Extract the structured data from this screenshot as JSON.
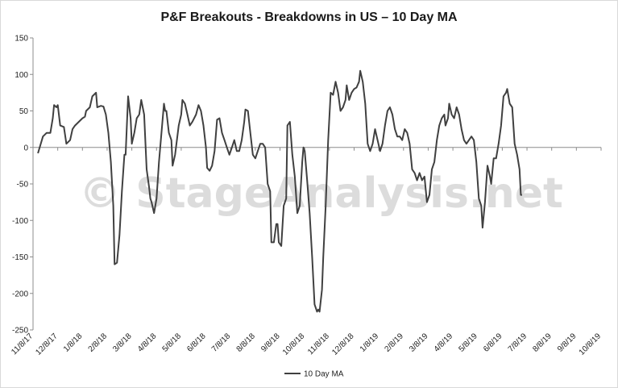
{
  "chart_data": {
    "type": "line",
    "title": "P&F Breakouts - Breakdowns in US – 10 Day MA",
    "xlabel": "",
    "ylabel": "",
    "ylim": [
      -250,
      150
    ],
    "yticks": [
      150,
      100,
      50,
      0,
      -50,
      -100,
      -150,
      -200,
      -250
    ],
    "x_ticks": [
      "11/8/17",
      "12/8/17",
      "1/8/18",
      "2/8/18",
      "3/8/18",
      "4/8/18",
      "5/8/18",
      "6/8/18",
      "7/8/18",
      "8/8/18",
      "9/8/18",
      "10/8/18",
      "11/8/18",
      "12/8/18",
      "1/8/19",
      "2/8/19",
      "3/8/19",
      "4/8/19",
      "5/8/19",
      "6/8/19",
      "7/8/19",
      "8/8/19",
      "9/8/19",
      "10/8/19"
    ],
    "grid": false,
    "legend_position": "bottom",
    "watermark": "© StageAnalysis.net",
    "series": [
      {
        "name": "10 Day MA",
        "color": "#404040",
        "points": [
          [
            0.2,
            -8
          ],
          [
            0.4,
            15
          ],
          [
            0.55,
            20
          ],
          [
            0.7,
            20
          ],
          [
            0.8,
            40
          ],
          [
            0.85,
            58
          ],
          [
            0.95,
            55
          ],
          [
            1.0,
            58
          ],
          [
            1.1,
            30
          ],
          [
            1.25,
            28
          ],
          [
            1.35,
            5
          ],
          [
            1.5,
            10
          ],
          [
            1.6,
            25
          ],
          [
            1.7,
            30
          ],
          [
            1.85,
            35
          ],
          [
            2.0,
            40
          ],
          [
            2.1,
            42
          ],
          [
            2.15,
            50
          ],
          [
            2.3,
            55
          ],
          [
            2.4,
            70
          ],
          [
            2.55,
            75
          ],
          [
            2.6,
            55
          ],
          [
            2.75,
            57
          ],
          [
            2.85,
            56
          ],
          [
            2.95,
            45
          ],
          [
            3.05,
            20
          ],
          [
            3.15,
            -20
          ],
          [
            3.25,
            -80
          ],
          [
            3.3,
            -160
          ],
          [
            3.4,
            -158
          ],
          [
            3.5,
            -120
          ],
          [
            3.6,
            -60
          ],
          [
            3.7,
            -10
          ],
          [
            3.75,
            -10
          ],
          [
            3.85,
            70
          ],
          [
            3.95,
            40
          ],
          [
            4.0,
            5
          ],
          [
            4.1,
            20
          ],
          [
            4.2,
            40
          ],
          [
            4.3,
            45
          ],
          [
            4.38,
            65
          ],
          [
            4.5,
            45
          ],
          [
            4.6,
            -30
          ],
          [
            4.7,
            -55
          ],
          [
            4.75,
            -70
          ],
          [
            4.8,
            -75
          ],
          [
            4.9,
            -90
          ],
          [
            5.0,
            -70
          ],
          [
            5.1,
            -20
          ],
          [
            5.2,
            20
          ],
          [
            5.3,
            60
          ],
          [
            5.35,
            50
          ],
          [
            5.4,
            50
          ],
          [
            5.5,
            20
          ],
          [
            5.6,
            10
          ],
          [
            5.65,
            -25
          ],
          [
            5.75,
            -10
          ],
          [
            5.9,
            30
          ],
          [
            6.0,
            45
          ],
          [
            6.05,
            65
          ],
          [
            6.15,
            60
          ],
          [
            6.25,
            45
          ],
          [
            6.35,
            30
          ],
          [
            6.45,
            35
          ],
          [
            6.6,
            45
          ],
          [
            6.7,
            58
          ],
          [
            6.8,
            50
          ],
          [
            6.9,
            30
          ],
          [
            7.0,
            0
          ],
          [
            7.05,
            -28
          ],
          [
            7.15,
            -32
          ],
          [
            7.25,
            -25
          ],
          [
            7.35,
            -5
          ],
          [
            7.45,
            38
          ],
          [
            7.55,
            40
          ],
          [
            7.65,
            20
          ],
          [
            7.75,
            10
          ],
          [
            7.85,
            0
          ],
          [
            7.95,
            -10
          ],
          [
            8.05,
            0
          ],
          [
            8.15,
            10
          ],
          [
            8.25,
            -5
          ],
          [
            8.35,
            -5
          ],
          [
            8.45,
            10
          ],
          [
            8.55,
            35
          ],
          [
            8.6,
            52
          ],
          [
            8.7,
            50
          ],
          [
            8.8,
            20
          ],
          [
            8.9,
            -10
          ],
          [
            9.0,
            -15
          ],
          [
            9.1,
            -5
          ],
          [
            9.2,
            5
          ],
          [
            9.3,
            5
          ],
          [
            9.4,
            0
          ],
          [
            9.5,
            -50
          ],
          [
            9.6,
            -60
          ],
          [
            9.65,
            -130
          ],
          [
            9.75,
            -130
          ],
          [
            9.85,
            -105
          ],
          [
            9.9,
            -105
          ],
          [
            9.95,
            -130
          ],
          [
            10.05,
            -135
          ],
          [
            10.15,
            -80
          ],
          [
            10.25,
            -70
          ],
          [
            10.3,
            30
          ],
          [
            10.4,
            35
          ],
          [
            10.5,
            -10
          ],
          [
            10.6,
            -40
          ],
          [
            10.7,
            -90
          ],
          [
            10.8,
            -80
          ],
          [
            10.9,
            -20
          ],
          [
            10.95,
            0
          ],
          [
            11.0,
            -5
          ],
          [
            11.1,
            -45
          ],
          [
            11.2,
            -90
          ],
          [
            11.3,
            -150
          ],
          [
            11.4,
            -215
          ],
          [
            11.5,
            -225
          ],
          [
            11.55,
            -222
          ],
          [
            11.6,
            -225
          ],
          [
            11.7,
            -195
          ],
          [
            11.75,
            -150
          ],
          [
            11.85,
            -80
          ],
          [
            11.95,
            10
          ],
          [
            12.05,
            75
          ],
          [
            12.15,
            72
          ],
          [
            12.25,
            90
          ],
          [
            12.35,
            75
          ],
          [
            12.45,
            50
          ],
          [
            12.55,
            55
          ],
          [
            12.65,
            65
          ],
          [
            12.7,
            85
          ],
          [
            12.8,
            65
          ],
          [
            12.9,
            75
          ],
          [
            13.0,
            80
          ],
          [
            13.1,
            82
          ],
          [
            13.2,
            90
          ],
          [
            13.25,
            105
          ],
          [
            13.35,
            90
          ],
          [
            13.45,
            60
          ],
          [
            13.55,
            5
          ],
          [
            13.65,
            -5
          ],
          [
            13.75,
            5
          ],
          [
            13.85,
            25
          ],
          [
            13.95,
            10
          ],
          [
            14.05,
            -5
          ],
          [
            14.15,
            5
          ],
          [
            14.25,
            30
          ],
          [
            14.35,
            50
          ],
          [
            14.45,
            55
          ],
          [
            14.55,
            45
          ],
          [
            14.65,
            25
          ],
          [
            14.75,
            15
          ],
          [
            14.85,
            15
          ],
          [
            14.95,
            10
          ],
          [
            15.05,
            25
          ],
          [
            15.15,
            20
          ],
          [
            15.25,
            5
          ],
          [
            15.35,
            -30
          ],
          [
            15.45,
            -35
          ],
          [
            15.55,
            -45
          ],
          [
            15.65,
            -35
          ],
          [
            15.75,
            -45
          ],
          [
            15.85,
            -40
          ],
          [
            15.95,
            -75
          ],
          [
            16.05,
            -65
          ],
          [
            16.15,
            -30
          ],
          [
            16.25,
            -20
          ],
          [
            16.35,
            10
          ],
          [
            16.45,
            30
          ],
          [
            16.55,
            40
          ],
          [
            16.65,
            45
          ],
          [
            16.7,
            30
          ],
          [
            16.8,
            40
          ],
          [
            16.85,
            60
          ],
          [
            16.95,
            45
          ],
          [
            17.05,
            40
          ],
          [
            17.15,
            55
          ],
          [
            17.25,
            45
          ],
          [
            17.35,
            25
          ],
          [
            17.45,
            10
          ],
          [
            17.55,
            5
          ],
          [
            17.65,
            10
          ],
          [
            17.75,
            15
          ],
          [
            17.85,
            10
          ],
          [
            17.95,
            -20
          ],
          [
            18.05,
            -70
          ],
          [
            18.15,
            -80
          ],
          [
            18.2,
            -110
          ],
          [
            18.3,
            -75
          ],
          [
            18.4,
            -25
          ],
          [
            18.5,
            -40
          ],
          [
            18.55,
            -50
          ],
          [
            18.65,
            -15
          ],
          [
            18.75,
            -15
          ],
          [
            18.85,
            5
          ],
          [
            18.95,
            30
          ],
          [
            19.05,
            70
          ],
          [
            19.15,
            75
          ],
          [
            19.2,
            80
          ],
          [
            19.3,
            60
          ],
          [
            19.4,
            55
          ],
          [
            19.5,
            5
          ],
          [
            19.6,
            -10
          ],
          [
            19.7,
            -30
          ],
          [
            19.75,
            -65
          ],
          [
            19.8,
            -65
          ]
        ]
      }
    ]
  }
}
